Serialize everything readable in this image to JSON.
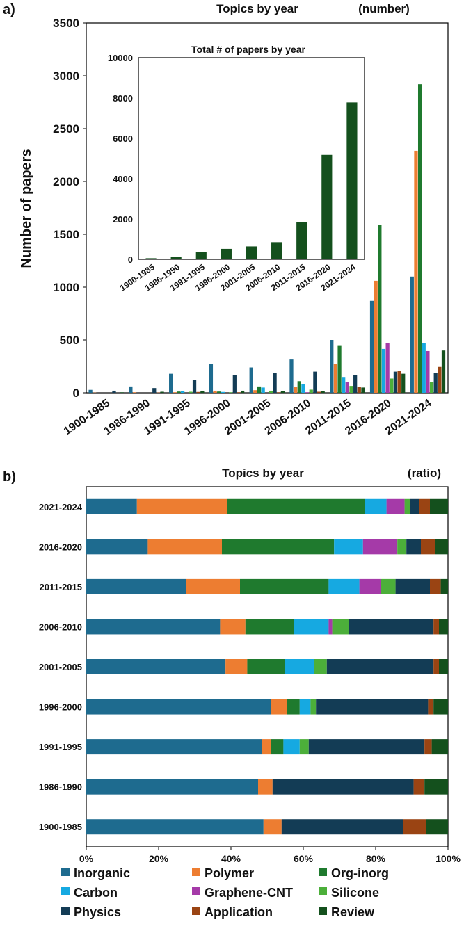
{
  "palette": {
    "Inorganic": "#1e6b8f",
    "Polymer": "#ed7d31",
    "Org-inorg": "#1f7a2e",
    "Carbon": "#16a9e1",
    "Graphene-CNT": "#a53aa8",
    "Silicone": "#4caf3a",
    "Physics": "#133c55",
    "Application": "#9a4413",
    "Review": "#14501d",
    "total": "#14501d"
  },
  "panel_a": {
    "label": "a)",
    "title": "Topics by year",
    "unit_note": "(number)",
    "ylabel": "Number of papers"
  },
  "panel_b": {
    "label": "b)",
    "title": "Topics by year",
    "unit_note": "(ratio)"
  },
  "inset": {
    "title": "Total # of papers by year"
  },
  "legend": [
    {
      "name": "Inorganic",
      "color": "#1e6b8f"
    },
    {
      "name": "Polymer",
      "color": "#ed7d31"
    },
    {
      "name": "Org-inorg",
      "color": "#1f7a2e"
    },
    {
      "name": "Carbon",
      "color": "#16a9e1"
    },
    {
      "name": "Graphene-CNT",
      "color": "#a53aa8"
    },
    {
      "name": "Silicone",
      "color": "#4caf3a"
    },
    {
      "name": "Physics",
      "color": "#133c55"
    },
    {
      "name": "Application",
      "color": "#9a4413"
    },
    {
      "name": "Review",
      "color": "#14501d"
    }
  ],
  "chart_data": [
    {
      "type": "bar",
      "title": "Topics by year",
      "ylabel": "Number of papers",
      "ylim": [
        0,
        3500
      ],
      "yticks": [
        0,
        500,
        1000,
        1500,
        2000,
        2500,
        3000,
        3500
      ],
      "categories": [
        "1900-1985",
        "1986-1990",
        "1991-1995",
        "1996-2000",
        "2001-2005",
        "2006-2010",
        "2011-2015",
        "2016-2020",
        "2021-2024"
      ],
      "series": [
        {
          "name": "Inorganic",
          "values": [
            28,
            60,
            180,
            270,
            240,
            315,
            500,
            870,
            1100
          ]
        },
        {
          "name": "Polymer",
          "values": [
            2,
            5,
            5,
            20,
            25,
            55,
            275,
            1060,
            2290
          ]
        },
        {
          "name": "Org-inorg",
          "values": [
            0,
            0,
            12,
            12,
            60,
            110,
            450,
            1590,
            2920
          ]
        },
        {
          "name": "Carbon",
          "values": [
            0,
            0,
            15,
            8,
            50,
            80,
            150,
            415,
            470
          ]
        },
        {
          "name": "Graphene-CNT",
          "values": [
            0,
            0,
            0,
            0,
            0,
            5,
            105,
            470,
            395
          ]
        },
        {
          "name": "Silicone",
          "values": [
            0,
            0,
            10,
            5,
            20,
            30,
            65,
            135,
            100
          ]
        },
        {
          "name": "Physics",
          "values": [
            20,
            45,
            120,
            165,
            190,
            200,
            170,
            200,
            190
          ]
        },
        {
          "name": "Application",
          "values": [
            0,
            3,
            8,
            5,
            5,
            10,
            55,
            210,
            245
          ]
        },
        {
          "name": "Review",
          "values": [
            5,
            10,
            15,
            20,
            15,
            15,
            50,
            180,
            400
          ]
        }
      ]
    },
    {
      "type": "bar",
      "title": "Total # of papers by year",
      "ylim": [
        0,
        10000
      ],
      "yticks": [
        0,
        2000,
        4000,
        6000,
        8000,
        10000
      ],
      "categories": [
        "1900-1985",
        "1986-1990",
        "1991-1995",
        "1996-2000",
        "2001-2005",
        "2006-2010",
        "2011-2015",
        "2016-2020",
        "2021-2024"
      ],
      "series": [
        {
          "values": [
            55,
            120,
            370,
            520,
            640,
            850,
            1850,
            5180,
            7780
          ]
        }
      ]
    },
    {
      "type": "bar",
      "orientation": "horizontal",
      "stacked": true,
      "title": "Topics by year",
      "xlim": [
        0,
        1
      ],
      "xticks": [
        "0%",
        "20%",
        "40%",
        "60%",
        "80%",
        "100%"
      ],
      "categories": [
        "2021-2024",
        "2016-2020",
        "2011-2015",
        "2006-2010",
        "2001-2005",
        "1996-2000",
        "1991-1995",
        "1986-1990",
        "1900-1985"
      ],
      "series": [
        {
          "name": "Inorganic",
          "values": [
            0.14,
            0.17,
            0.275,
            0.37,
            0.385,
            0.51,
            0.485,
            0.475,
            0.49
          ]
        },
        {
          "name": "Polymer",
          "values": [
            0.25,
            0.205,
            0.15,
            0.07,
            0.06,
            0.045,
            0.025,
            0.04,
            0.05
          ]
        },
        {
          "name": "Org-inorg",
          "values": [
            0.38,
            0.31,
            0.245,
            0.135,
            0.105,
            0.035,
            0.035,
            0.0,
            0.0
          ]
        },
        {
          "name": "Carbon",
          "values": [
            0.06,
            0.08,
            0.085,
            0.095,
            0.08,
            0.03,
            0.045,
            0.0,
            0.0
          ]
        },
        {
          "name": "Graphene-CNT",
          "values": [
            0.05,
            0.095,
            0.06,
            0.01,
            0.0,
            0.0,
            0.0,
            0.0,
            0.0
          ]
        },
        {
          "name": "Silicone",
          "values": [
            0.015,
            0.025,
            0.04,
            0.045,
            0.035,
            0.015,
            0.025,
            0.0,
            0.0
          ]
        },
        {
          "name": "Physics",
          "values": [
            0.025,
            0.04,
            0.095,
            0.235,
            0.295,
            0.31,
            0.32,
            0.39,
            0.335
          ]
        },
        {
          "name": "Application",
          "values": [
            0.03,
            0.04,
            0.03,
            0.015,
            0.015,
            0.015,
            0.02,
            0.03,
            0.065
          ]
        },
        {
          "name": "Review",
          "values": [
            0.05,
            0.035,
            0.02,
            0.025,
            0.025,
            0.04,
            0.045,
            0.065,
            0.06
          ]
        }
      ]
    }
  ]
}
